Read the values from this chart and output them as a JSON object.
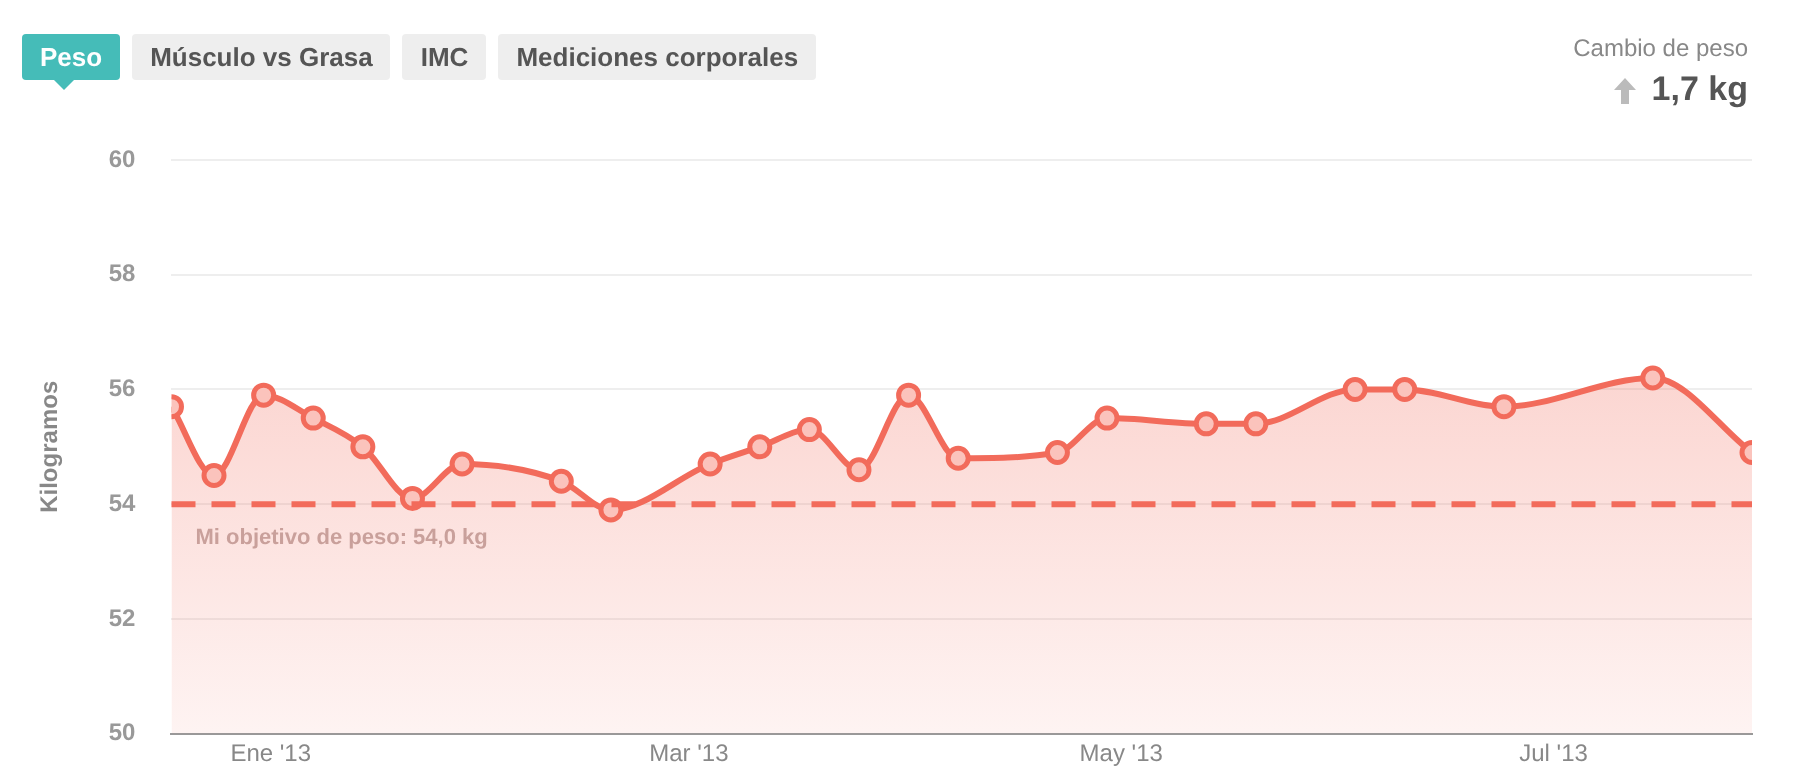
{
  "chart_data": {
    "type": "area",
    "ylabel": "Kilogramos",
    "color": "#f26b5b",
    "x": [
      "2012-12-18",
      "2012-12-24",
      "2012-12-31",
      "2013-01-07",
      "2013-01-14",
      "2013-01-21",
      "2013-01-28",
      "2013-02-11",
      "2013-02-18",
      "2013-03-04",
      "2013-03-11",
      "2013-03-18",
      "2013-03-25",
      "2013-04-01",
      "2013-04-08",
      "2013-04-22",
      "2013-04-29",
      "2013-05-13",
      "2013-05-20",
      "2013-06-03",
      "2013-06-10",
      "2013-06-24",
      "2013-07-15",
      "2013-07-29"
    ],
    "values": [
      55.7,
      54.5,
      55.9,
      55.5,
      55.0,
      54.1,
      54.7,
      54.4,
      53.9,
      54.7,
      55.0,
      55.3,
      54.6,
      55.9,
      54.8,
      54.9,
      55.5,
      55.4,
      55.4,
      56.0,
      56.0,
      55.7,
      56.2,
      54.9
    ],
    "xlim": [
      "2012-12-18",
      "2013-07-29"
    ],
    "xticks": [
      {
        "value": "2013-01-01",
        "label": "Ene '13"
      },
      {
        "value": "2013-03-01",
        "label": "Mar '13"
      },
      {
        "value": "2013-05-01",
        "label": "May '13"
      },
      {
        "value": "2013-07-01",
        "label": "Jul '13"
      }
    ],
    "ylim": [
      50,
      60
    ],
    "yticks": [
      50,
      52,
      54,
      56,
      58,
      60
    ],
    "grid": "y",
    "legend": false,
    "marker": "circle",
    "line_style": "solid",
    "ref_lines": [
      {
        "axis": "y",
        "value": 54,
        "label": "Mi objetivo de peso: 54,0 kg",
        "color": "#f26b5b",
        "line_style": "dashed"
      }
    ],
    "annotations": [
      "Peso",
      "Músculo vs Grasa",
      "IMC",
      "Mediciones corporales",
      "Cambio de peso",
      "1,7 kg"
    ]
  }
}
